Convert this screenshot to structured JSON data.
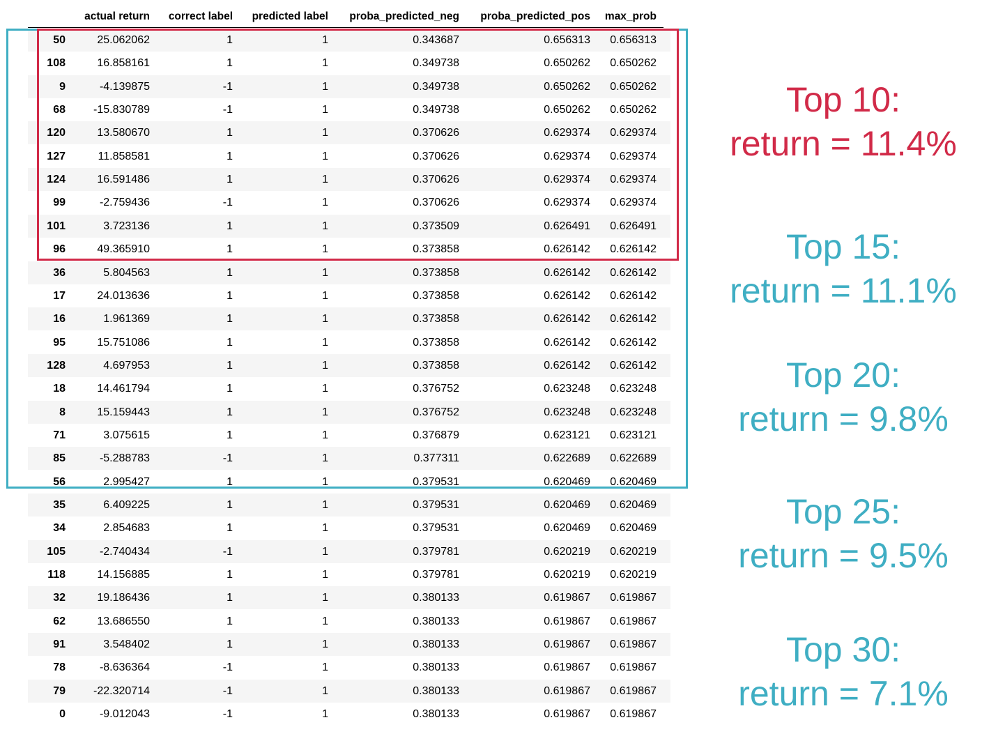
{
  "table": {
    "columns": [
      "",
      "actual return",
      "correct label",
      "predicted label",
      "proba_predicted_neg",
      "proba_predicted_pos",
      "max_prob"
    ],
    "rows": [
      [
        "50",
        "25.062062",
        "1",
        "1",
        "0.343687",
        "0.656313",
        "0.656313"
      ],
      [
        "108",
        "16.858161",
        "1",
        "1",
        "0.349738",
        "0.650262",
        "0.650262"
      ],
      [
        "9",
        "-4.139875",
        "-1",
        "1",
        "0.349738",
        "0.650262",
        "0.650262"
      ],
      [
        "68",
        "-15.830789",
        "-1",
        "1",
        "0.349738",
        "0.650262",
        "0.650262"
      ],
      [
        "120",
        "13.580670",
        "1",
        "1",
        "0.370626",
        "0.629374",
        "0.629374"
      ],
      [
        "127",
        "11.858581",
        "1",
        "1",
        "0.370626",
        "0.629374",
        "0.629374"
      ],
      [
        "124",
        "16.591486",
        "1",
        "1",
        "0.370626",
        "0.629374",
        "0.629374"
      ],
      [
        "99",
        "-2.759436",
        "-1",
        "1",
        "0.370626",
        "0.629374",
        "0.629374"
      ],
      [
        "101",
        "3.723136",
        "1",
        "1",
        "0.373509",
        "0.626491",
        "0.626491"
      ],
      [
        "96",
        "49.365910",
        "1",
        "1",
        "0.373858",
        "0.626142",
        "0.626142"
      ],
      [
        "36",
        "5.804563",
        "1",
        "1",
        "0.373858",
        "0.626142",
        "0.626142"
      ],
      [
        "17",
        "24.013636",
        "1",
        "1",
        "0.373858",
        "0.626142",
        "0.626142"
      ],
      [
        "16",
        "1.961369",
        "1",
        "1",
        "0.373858",
        "0.626142",
        "0.626142"
      ],
      [
        "95",
        "15.751086",
        "1",
        "1",
        "0.373858",
        "0.626142",
        "0.626142"
      ],
      [
        "128",
        "4.697953",
        "1",
        "1",
        "0.373858",
        "0.626142",
        "0.626142"
      ],
      [
        "18",
        "14.461794",
        "1",
        "1",
        "0.376752",
        "0.623248",
        "0.623248"
      ],
      [
        "8",
        "15.159443",
        "1",
        "1",
        "0.376752",
        "0.623248",
        "0.623248"
      ],
      [
        "71",
        "3.075615",
        "1",
        "1",
        "0.376879",
        "0.623121",
        "0.623121"
      ],
      [
        "85",
        "-5.288783",
        "-1",
        "1",
        "0.377311",
        "0.622689",
        "0.622689"
      ],
      [
        "56",
        "2.995427",
        "1",
        "1",
        "0.379531",
        "0.620469",
        "0.620469"
      ],
      [
        "35",
        "6.409225",
        "1",
        "1",
        "0.379531",
        "0.620469",
        "0.620469"
      ],
      [
        "34",
        "2.854683",
        "1",
        "1",
        "0.379531",
        "0.620469",
        "0.620469"
      ],
      [
        "105",
        "-2.740434",
        "-1",
        "1",
        "0.379781",
        "0.620219",
        "0.620219"
      ],
      [
        "118",
        "14.156885",
        "1",
        "1",
        "0.379781",
        "0.620219",
        "0.620219"
      ],
      [
        "32",
        "19.186436",
        "1",
        "1",
        "0.380133",
        "0.619867",
        "0.619867"
      ],
      [
        "62",
        "13.686550",
        "1",
        "1",
        "0.380133",
        "0.619867",
        "0.619867"
      ],
      [
        "91",
        "3.548402",
        "1",
        "1",
        "0.380133",
        "0.619867",
        "0.619867"
      ],
      [
        "78",
        "-8.636364",
        "-1",
        "1",
        "0.380133",
        "0.619867",
        "0.619867"
      ],
      [
        "79",
        "-22.320714",
        "-1",
        "1",
        "0.380133",
        "0.619867",
        "0.619867"
      ],
      [
        "0",
        "-9.012043",
        "-1",
        "1",
        "0.380133",
        "0.619867",
        "0.619867"
      ]
    ]
  },
  "highlights": {
    "top10_color": "#d12a48",
    "top20_color": "#3faec3"
  },
  "annotations": [
    {
      "line1": "Top 10:",
      "line2": "return = 11.4%",
      "color": "#d12a48"
    },
    {
      "line1": "Top 15:",
      "line2": "return = 11.1%",
      "color": "#3faec3"
    },
    {
      "line1": "Top 20:",
      "line2": "return = 9.8%",
      "color": "#3faec3"
    },
    {
      "line1": "Top 25:",
      "line2": "return = 9.5%",
      "color": "#3faec3"
    },
    {
      "line1": "Top 30:",
      "line2": "return = 7.1%",
      "color": "#3faec3"
    }
  ]
}
